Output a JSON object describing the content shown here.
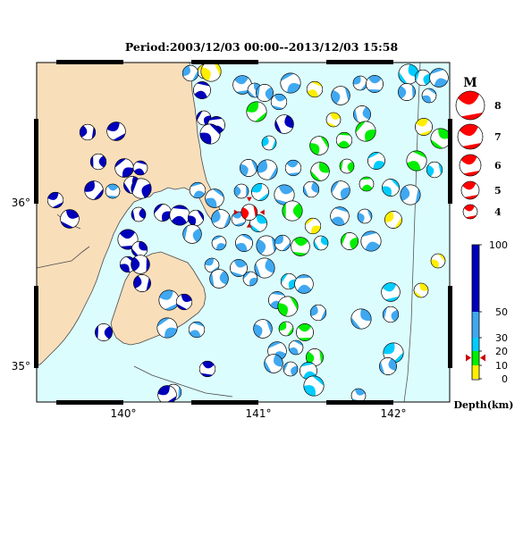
{
  "title": "Period:2003/12/03 00:00--2013/12/03 15:58",
  "map": {
    "lon_labels": [
      "140°",
      "141°",
      "142°"
    ],
    "lat_labels": [
      "36°",
      "35°"
    ],
    "extent": {
      "lon_min": 139.35,
      "lon_max": 142.4,
      "lat_min": 34.78,
      "lat_max": 36.48
    },
    "colors": {
      "land": "#f9deba",
      "sea": "#dcfdfe",
      "coast": "#4a4a4a"
    }
  },
  "magnitude_legend": {
    "title": "M",
    "items": [
      "8",
      "7",
      "6",
      "5",
      "4"
    ],
    "color": "#ff0000"
  },
  "depth_legend": {
    "title": "Depth(km)",
    "ticks": [
      "100",
      "50",
      "30",
      "20",
      "10",
      "0"
    ],
    "bands": [
      {
        "from": 0,
        "to": 10,
        "color": "#ffee00"
      },
      {
        "from": 10,
        "to": 20,
        "color": "#00ee00"
      },
      {
        "from": 20,
        "to": 30,
        "color": "#00ccff"
      },
      {
        "from": 30,
        "to": 50,
        "color": "#3fa8f0"
      },
      {
        "from": 50,
        "to": 100,
        "color": "#0000bb"
      }
    ],
    "marker_depth": 13
  },
  "latest_event": {
    "lon": 140.92,
    "lat": 35.73,
    "color": "#ff0000"
  }
}
